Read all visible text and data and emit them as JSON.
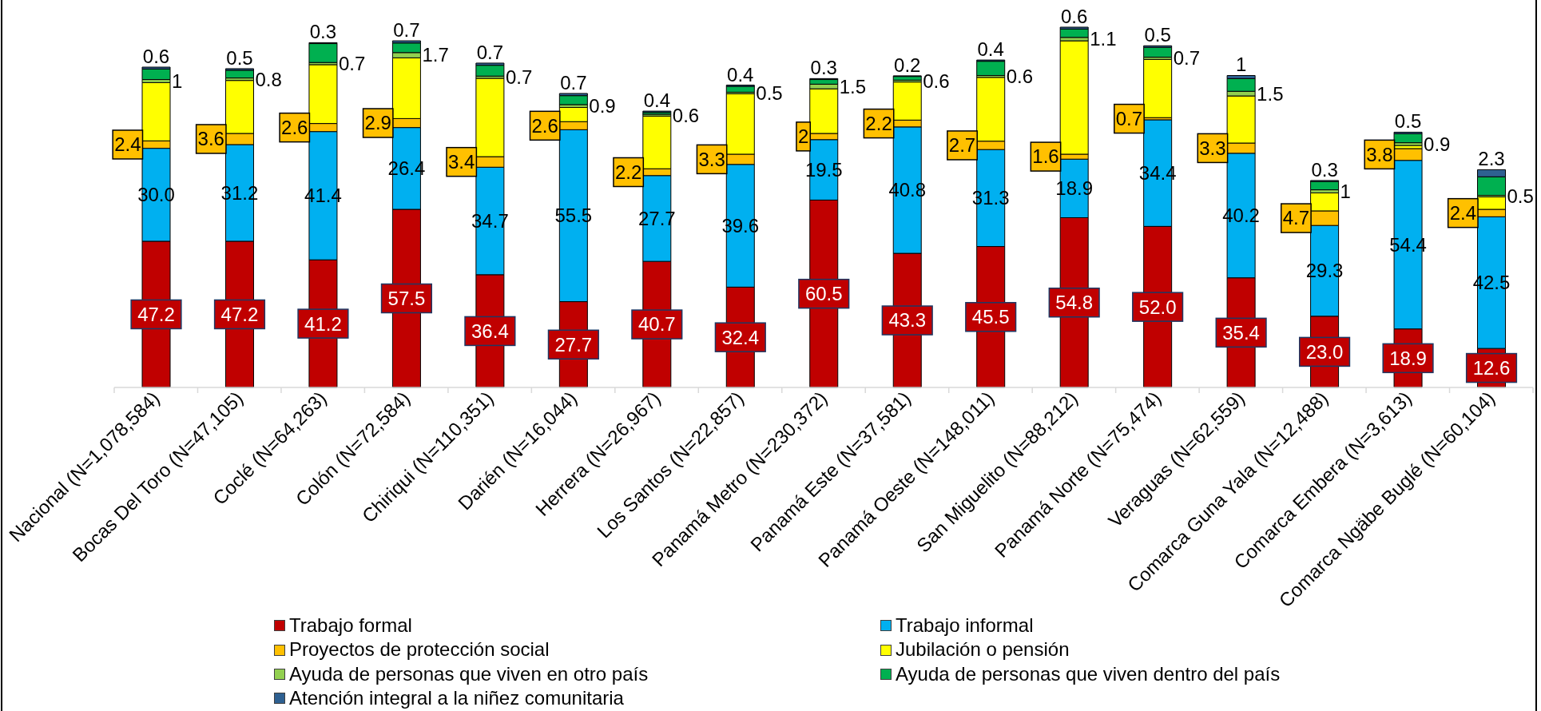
{
  "chart_data": {
    "type": "bar",
    "stacked": true,
    "legend": "bottom",
    "categories": [
      "Nacional (N=1,078,584)",
      "Bocas Del Toro (N=47,105)",
      "Coclé (N=64,263)",
      "Colón (N=72,584)",
      "Chiriqui (N=110,351)",
      "Darién (N=16,044)",
      "Herrera (N=26,967)",
      "Los Santos (N=22,857)",
      "Panamá Metro (N=230,372)",
      "Panamá Este (N=37,581)",
      "Panamá Oeste (N=148,011)",
      "San Miguelito (N=88,212)",
      "Panamá Norte (N=75,474)",
      "Veraguas (N=62,559)",
      "Comarca Guna Yala (N=12,488)",
      "Comarca Embera (N=3,613)",
      "Comarca Ngäbe Buglé (N=60,104)"
    ],
    "series": [
      {
        "name": "Trabajo formal",
        "color": "#c00000",
        "values": [
          47.2,
          47.2,
          41.2,
          57.5,
          36.4,
          27.7,
          40.7,
          32.4,
          60.5,
          43.3,
          45.5,
          54.8,
          52.0,
          35.4,
          23.0,
          18.9,
          12.6
        ],
        "value_labels": [
          "47.2",
          "47.2",
          "41.2",
          "57.5",
          "36.4",
          "27.7",
          "40.7",
          "32.4",
          "60.5",
          "43.3",
          "45.5",
          "54.8",
          "52.0",
          "35.4",
          "23.0",
          "18.9",
          "12.6"
        ]
      },
      {
        "name": "Trabajo informal",
        "color": "#00b0f0",
        "values": [
          30.0,
          31.2,
          41.4,
          26.4,
          34.7,
          55.5,
          27.7,
          39.6,
          19.5,
          40.8,
          31.3,
          18.9,
          34.4,
          40.2,
          29.3,
          54.4,
          42.5
        ],
        "value_labels": [
          "30.0",
          "31.2",
          "41.4",
          "26.4",
          "34.7",
          "55.5",
          "27.7",
          "39.6",
          "19.5",
          "40.8",
          "31.3",
          "18.9",
          "34.4",
          "40.2",
          "29.3",
          "54.4",
          "42.5"
        ]
      },
      {
        "name": "Proyectos de protección social",
        "color": "#ffc000",
        "values": [
          2.4,
          3.6,
          2.6,
          2.9,
          3.4,
          2.6,
          2.2,
          3.3,
          2,
          2.2,
          2.7,
          1.6,
          0.7,
          3.3,
          4.7,
          3.8,
          2.4
        ],
        "value_labels": [
          "2.4",
          "3.6",
          "2.6",
          "2.9",
          "3.4",
          "2.6",
          "2.2",
          "3.3",
          "2",
          "2.2",
          "2.7",
          "1.6",
          "0.7",
          "3.3",
          "4.7",
          "3.8",
          "2.4"
        ]
      },
      {
        "name": "Jubilación o pensión",
        "color": "#ffff00",
        "values": [
          18.8,
          17.1,
          19.0,
          19.6,
          25.3,
          4.6,
          17.0,
          19.5,
          14.4,
          12.3,
          20.6,
          36.6,
          18.8,
          15.2,
          5.8,
          1.0,
          4.0
        ]
      },
      {
        "name": "Ayuda de personas que viven en otro país",
        "color": "#92d050",
        "values": [
          1,
          0.8,
          0.7,
          1.7,
          0.7,
          0.9,
          0.6,
          0.5,
          1.5,
          0.6,
          0.6,
          1.1,
          0.7,
          1.5,
          1,
          0.9,
          0.5
        ],
        "value_labels": [
          "1",
          "0.8",
          "0.7",
          "1.7",
          "0.7",
          "0.9",
          "0.6",
          "0.5",
          "1.5",
          "0.6",
          "0.6",
          "1.1",
          "0.7",
          "1.5",
          "1",
          "0.9",
          "0.5"
        ]
      },
      {
        "name": "Ayuda de personas que viven dentro del país",
        "color": "#00b050",
        "values": [
          3.4,
          2.5,
          6.1,
          3.1,
          3.5,
          2.9,
          0.6,
          1.9,
          1.5,
          1.2,
          4.6,
          2.7,
          3.2,
          4.1,
          2.7,
          2.9,
          6.0
        ]
      },
      {
        "name": "Atención integral a la niñez comunitaria",
        "color": "#2e6091",
        "values": [
          0.6,
          0.5,
          0.3,
          0.7,
          0.7,
          0.7,
          0.4,
          0.4,
          0.3,
          0.2,
          0.4,
          0.6,
          0.5,
          1,
          0.3,
          0.5,
          2.3
        ],
        "value_labels": [
          "0.6",
          "0.5",
          "0.3",
          "0.7",
          "0.7",
          "0.7",
          "0.4",
          "0.4",
          "0.3",
          "0.2",
          "0.4",
          "0.6",
          "0.5",
          "1",
          "0.3",
          "0.5",
          "2.3"
        ]
      }
    ]
  }
}
